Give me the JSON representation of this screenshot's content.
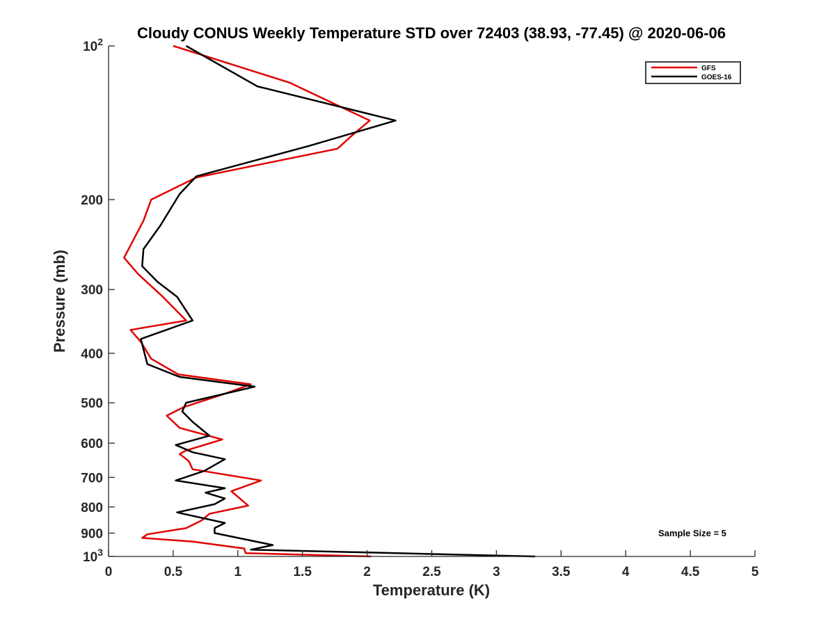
{
  "chart_data": {
    "type": "line",
    "title": "Cloudy CONUS Weekly Temperature STD over 72403 (38.93, -77.45) @ 2020-06-06",
    "xlabel": "Temperature (K)",
    "ylabel": "Pressure (mb)",
    "xlim": [
      0,
      5
    ],
    "ylim": [
      100,
      1000
    ],
    "y_scale": "log",
    "y_reversed": true,
    "grid": false,
    "legend_position": "top-right",
    "x_ticks": [
      "0",
      "0.5",
      "1",
      "1.5",
      "2",
      "2.5",
      "3",
      "3.5",
      "4",
      "4.5",
      "5"
    ],
    "x_tick_values": [
      0,
      0.5,
      1,
      1.5,
      2,
      2.5,
      3,
      3.5,
      4,
      4.5,
      5
    ],
    "y_ticks": [
      {
        "value": 100,
        "base": "10",
        "exp": "2"
      },
      {
        "value": 200,
        "label": "200"
      },
      {
        "value": 300,
        "label": "300"
      },
      {
        "value": 400,
        "label": "400"
      },
      {
        "value": 500,
        "label": "500"
      },
      {
        "value": 600,
        "label": "600"
      },
      {
        "value": 700,
        "label": "700"
      },
      {
        "value": 800,
        "label": "800"
      },
      {
        "value": 900,
        "label": "900"
      },
      {
        "value": 1000,
        "base": "10",
        "exp": "3"
      }
    ],
    "annotation": "Sample Size = 5",
    "series": [
      {
        "name": "GFS",
        "color": "#e00000",
        "points": [
          [
            0.5,
            100
          ],
          [
            1.4,
            118
          ],
          [
            2.02,
            140
          ],
          [
            1.88,
            150
          ],
          [
            1.77,
            159
          ],
          [
            0.68,
            181
          ],
          [
            0.33,
            200
          ],
          [
            0.27,
            220
          ],
          [
            0.12,
            260
          ],
          [
            0.23,
            280
          ],
          [
            0.42,
            310
          ],
          [
            0.6,
            345
          ],
          [
            0.17,
            360
          ],
          [
            0.25,
            380
          ],
          [
            0.33,
            410
          ],
          [
            0.54,
            440
          ],
          [
            1.1,
            460
          ],
          [
            0.9,
            480
          ],
          [
            0.58,
            510
          ],
          [
            0.45,
            530
          ],
          [
            0.55,
            560
          ],
          [
            0.88,
            590
          ],
          [
            0.6,
            620
          ],
          [
            0.55,
            630
          ],
          [
            0.62,
            650
          ],
          [
            0.65,
            675
          ],
          [
            1.18,
            710
          ],
          [
            0.95,
            745
          ],
          [
            1.08,
            795
          ],
          [
            0.78,
            825
          ],
          [
            0.72,
            850
          ],
          [
            0.6,
            880
          ],
          [
            0.3,
            905
          ],
          [
            0.26,
            920
          ],
          [
            0.65,
            935
          ],
          [
            1.05,
            965
          ],
          [
            1.06,
            985
          ],
          [
            2.03,
            1000
          ]
        ]
      },
      {
        "name": "GOES-16",
        "color": "#000000",
        "points": [
          [
            0.6,
            100
          ],
          [
            1.15,
            120
          ],
          [
            2.22,
            140
          ],
          [
            1.55,
            157
          ],
          [
            0.68,
            180
          ],
          [
            0.55,
            195
          ],
          [
            0.4,
            225
          ],
          [
            0.27,
            250
          ],
          [
            0.26,
            270
          ],
          [
            0.38,
            290
          ],
          [
            0.53,
            310
          ],
          [
            0.65,
            345
          ],
          [
            0.25,
            375
          ],
          [
            0.3,
            420
          ],
          [
            0.55,
            445
          ],
          [
            1.13,
            465
          ],
          [
            0.9,
            480
          ],
          [
            0.6,
            500
          ],
          [
            0.57,
            520
          ],
          [
            0.65,
            545
          ],
          [
            0.78,
            580
          ],
          [
            0.52,
            605
          ],
          [
            0.65,
            625
          ],
          [
            0.9,
            645
          ],
          [
            0.74,
            680
          ],
          [
            0.52,
            710
          ],
          [
            0.9,
            735
          ],
          [
            0.75,
            750
          ],
          [
            0.9,
            770
          ],
          [
            0.82,
            790
          ],
          [
            0.53,
            820
          ],
          [
            0.9,
            860
          ],
          [
            0.82,
            880
          ],
          [
            0.82,
            900
          ],
          [
            1.27,
            950
          ],
          [
            1.1,
            970
          ],
          [
            3.3,
            1000
          ]
        ]
      }
    ]
  }
}
